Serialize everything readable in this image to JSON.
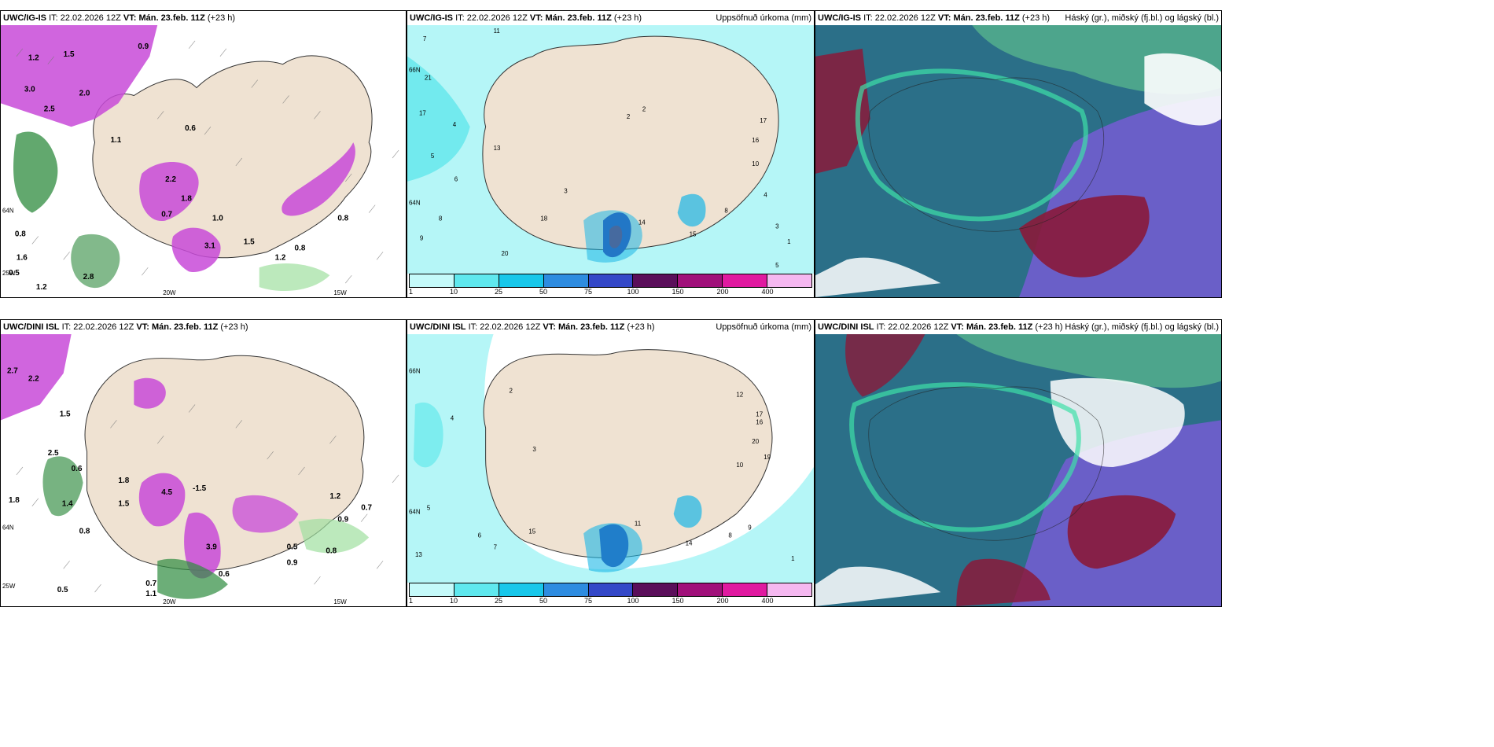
{
  "colors": {
    "land": "#efe2d2",
    "precip_light_cyan": "#b5f6f7",
    "precip_cyan": "#46e3e8",
    "precip_blue": "#1bb7e6",
    "precip_strong": "#3a6ad8",
    "precip_dark": "#2a2aa0",
    "precip_maroon": "#7a0f4a",
    "snow_magenta": "#c84ad8",
    "rain_green": "#2e8b3e",
    "cloud_high": "#4da58c",
    "cloud_mid": "#2b6f88",
    "cloud_low": "#6a5fc8",
    "cloud_dark": "#8a1a3a"
  },
  "panels": [
    {
      "model": "UWC/IG-IS",
      "it_label": "IT:",
      "it_value": "22.02.2026 12Z",
      "vt_label": "VT:",
      "vt_value": "Mán. 23.feb. 11Z",
      "lead": "(+23 h)",
      "right_title": "",
      "map_labels": [
        "3.0",
        "2.5",
        "1.2",
        "1.5",
        "2.0",
        "0.9",
        "1.1",
        "0.6",
        "2.2",
        "1.8",
        "1.6",
        "1.0",
        "0.8",
        "0.5",
        "1.2",
        "3.1",
        "2.8",
        "0.7",
        "1.5",
        "1.2",
        "0.8",
        "0.8"
      ],
      "lon_labels": [
        "20W",
        "15W"
      ],
      "lat_labels": [
        "64N",
        "25W"
      ]
    },
    {
      "model": "UWC/IG-IS",
      "it_label": "IT:",
      "it_value": "22.02.2026 12Z",
      "vt_label": "VT:",
      "vt_value": "Mán. 23.feb. 11Z",
      "lead": "(+23 h)",
      "right_title": "Uppsöfnuð úrkoma (mm)",
      "map_labels": [
        "7",
        "11",
        "21",
        "17",
        "4",
        "9",
        "8",
        "5",
        "13",
        "6",
        "3",
        "2",
        "18",
        "20",
        "16",
        "14",
        "15",
        "5",
        "3",
        "1",
        "2",
        "4",
        "8",
        "10",
        "17"
      ],
      "lat_labels": [
        "66N",
        "64N"
      ]
    },
    {
      "model": "UWC/IG-IS",
      "it_label": "IT:",
      "it_value": "22.02.2026 12Z",
      "vt_label": "VT:",
      "vt_value": "Mán. 23.feb. 11Z",
      "lead": "(+23 h)",
      "right_title": "Háský (gr.), miðský (fj.bl.) og lágský (bl.)"
    },
    {
      "model": "UWC/DINI ISL",
      "it_label": "IT:",
      "it_value": "22.02.2026 12Z",
      "vt_label": "VT:",
      "vt_value": "Mán. 23.feb. 11Z",
      "lead": "(+23 h)",
      "right_title": "",
      "map_labels": [
        "2.7",
        "2.2",
        "1.5",
        "2.5",
        "0.6",
        "1.8",
        "1.4",
        "0.8",
        "1.5",
        "4.5",
        "1.8",
        "-1.5",
        "3.9",
        "1.2",
        "0.7",
        "0.9",
        "0.5",
        "0.9",
        "0.8",
        "0.7",
        "1.1",
        "0.6",
        "0.5"
      ],
      "lon_labels": [
        "20W",
        "15W"
      ],
      "lat_labels": [
        "64N",
        "25W"
      ]
    },
    {
      "model": "UWC/DINI ISL",
      "it_label": "IT:",
      "it_value": "22.02.2026 12Z",
      "vt_label": "VT:",
      "vt_value": "Mán. 23.feb. 11Z",
      "lead": "(+23 h)",
      "right_title": "Uppsöfnuð úrkoma (mm)",
      "map_labels": [
        "2",
        "4",
        "3",
        "5",
        "12",
        "17",
        "16",
        "20",
        "19",
        "10",
        "9",
        "8",
        "7",
        "6",
        "13",
        "14",
        "11",
        "1",
        "15"
      ],
      "lat_labels": [
        "66N",
        "64N"
      ]
    },
    {
      "model": "UWC/DINI ISL",
      "it_label": "IT:",
      "it_value": "22.02.2026 12Z",
      "vt_label": "VT:",
      "vt_value": "Mán. 23.feb. 11Z",
      "lead": "(+23 h)",
      "right_title": "Háský (gr.), miðský (fj.bl.) og lágský (bl.)"
    }
  ],
  "colorbar": {
    "ticks": [
      "1",
      "10",
      "25",
      "50",
      "75",
      "100",
      "150",
      "200",
      "400"
    ],
    "colors": [
      "#c5fafa",
      "#5fe8ee",
      "#18c7ea",
      "#2e8ce0",
      "#3448c8",
      "#5a0e5a",
      "#a0107a",
      "#e01aa0",
      "#f5b8f0"
    ]
  }
}
